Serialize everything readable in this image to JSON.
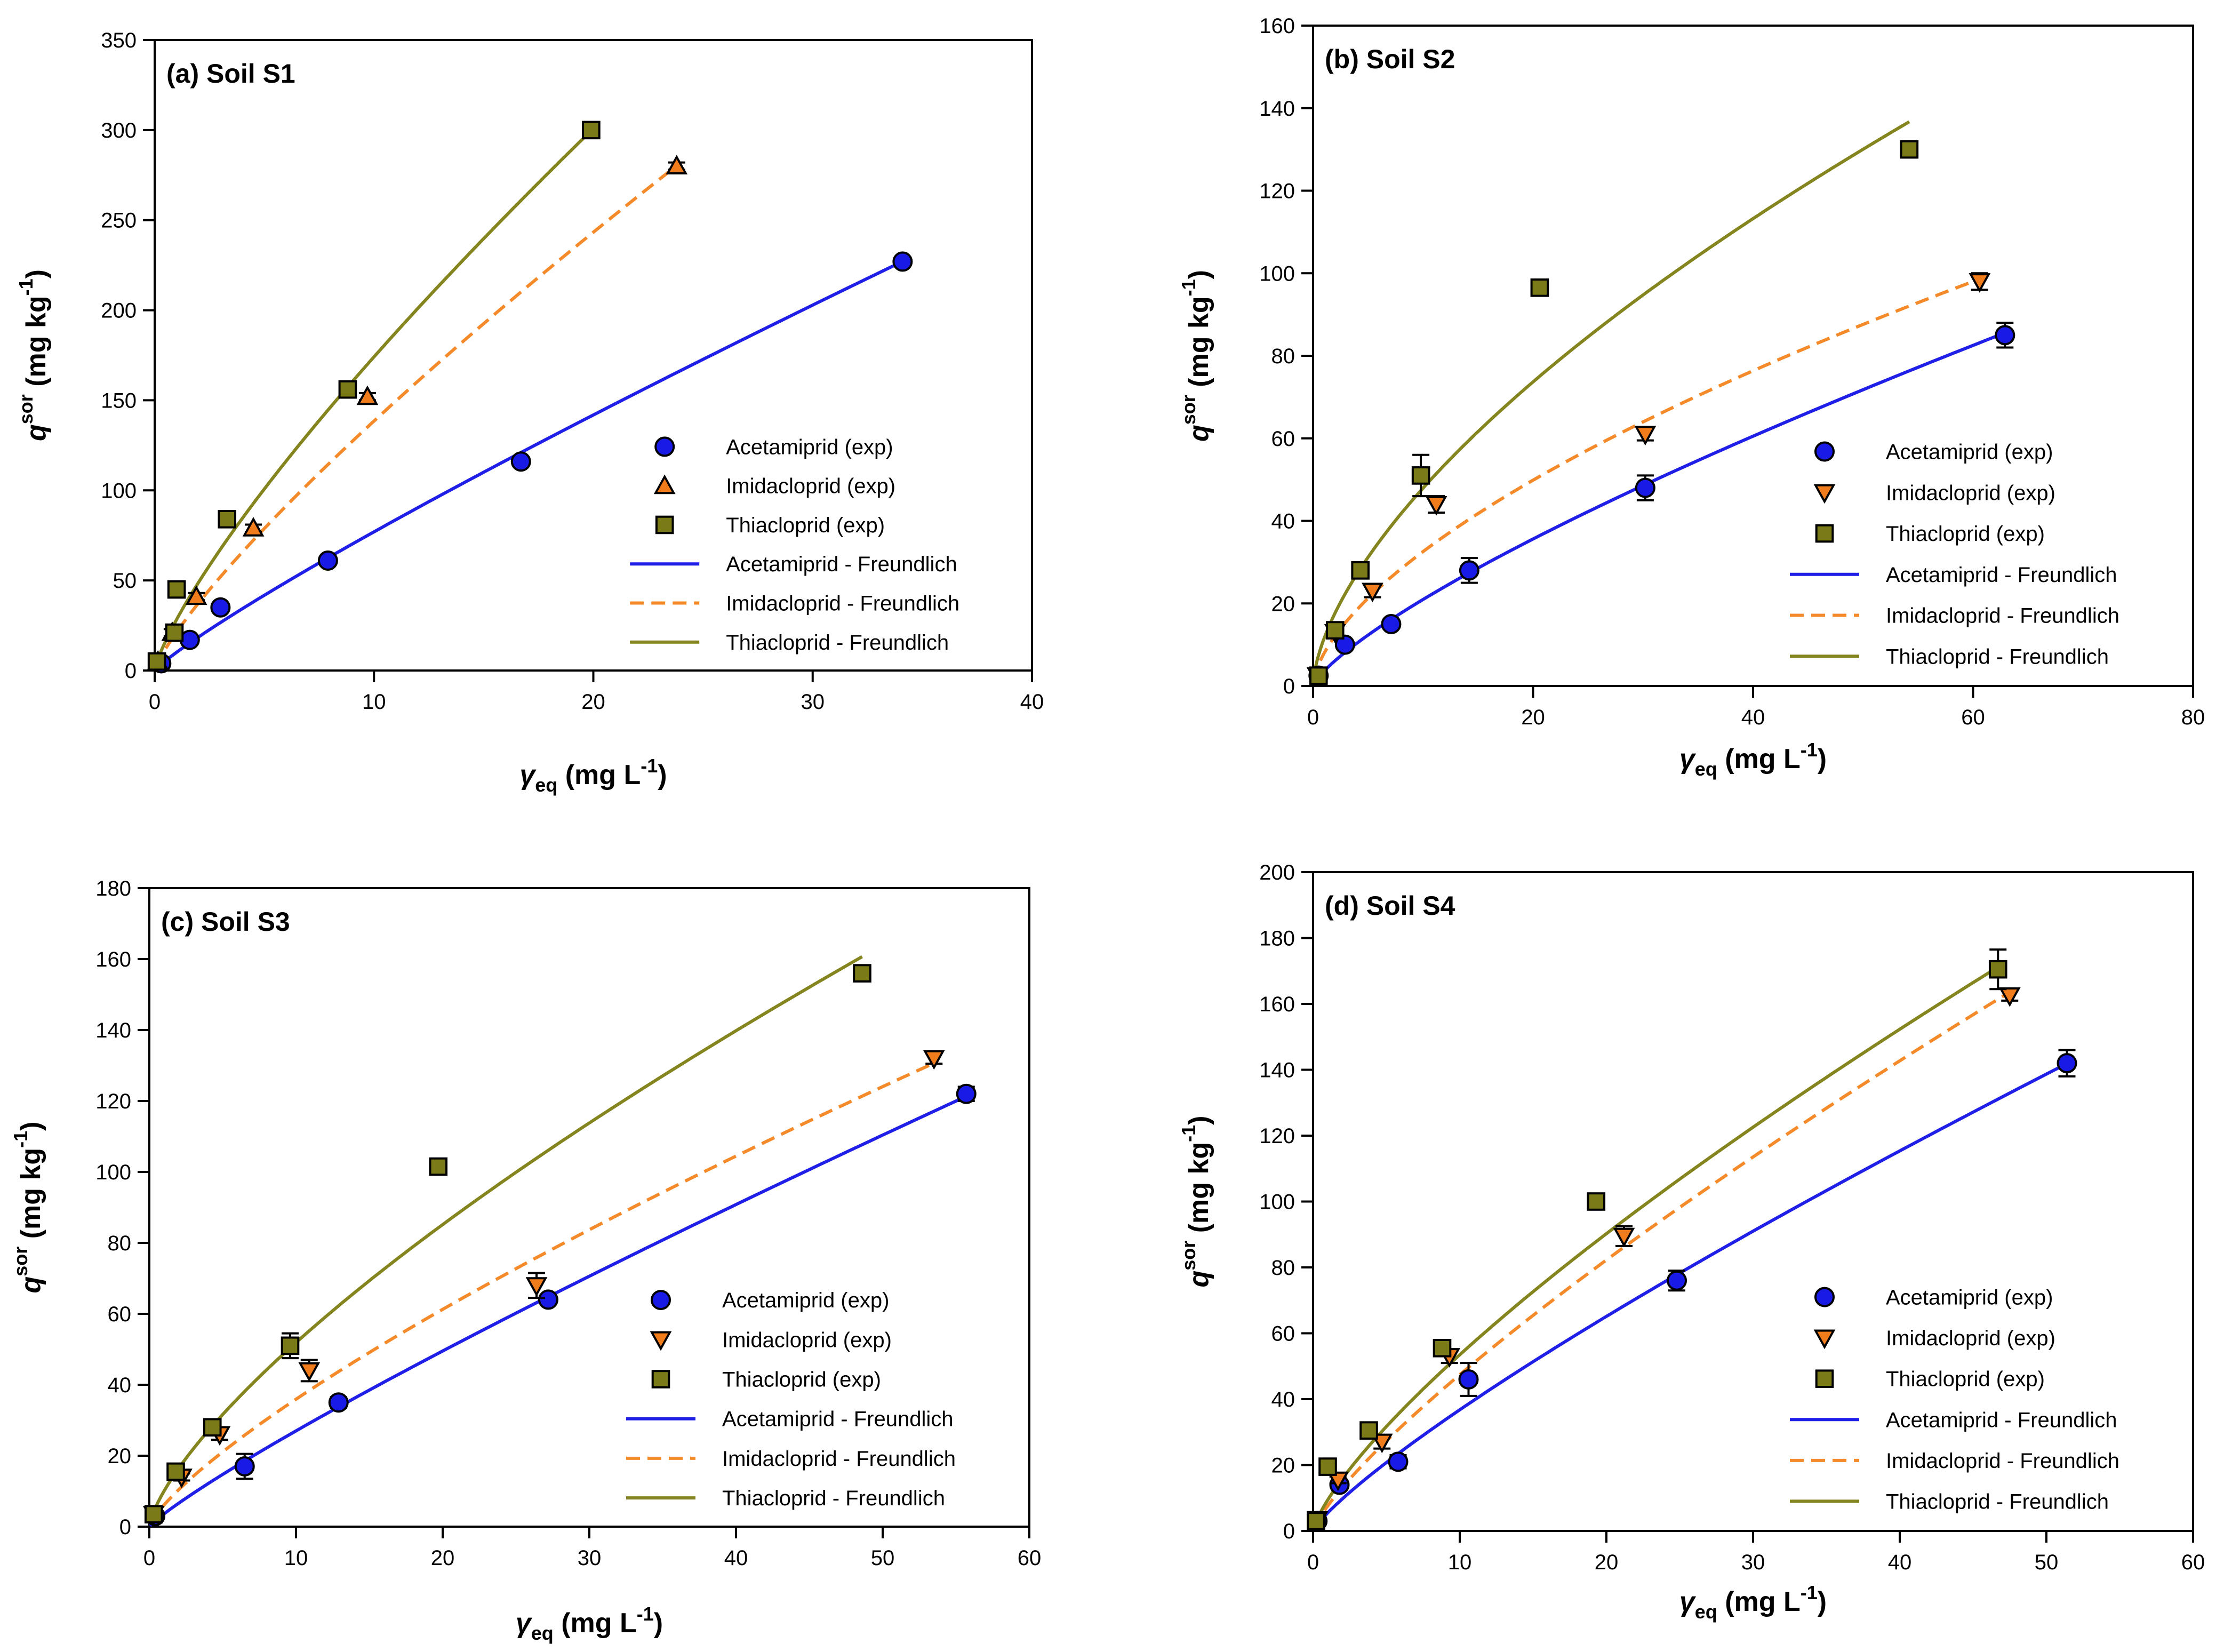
{
  "colors": {
    "acetamiprid": "#1a1ae6",
    "imidacloprid": "#f07c1c",
    "thiacloprid": "#7a7a18",
    "acetamiprid_line": "#1f1fe8",
    "imidacloprid_line": "#f58a2a",
    "thiacloprid_line": "#858520"
  },
  "markers": {
    "acetamiprid": "circle",
    "imidacloprid_a": "triangle-up",
    "imidacloprid": "triangle-down",
    "thiacloprid": "square"
  },
  "axis_labels": {
    "y_main": "q",
    "y_sup": "sor",
    "y_unit": " (mg kg",
    "y_unit_sup": "-1",
    "y_close": ")",
    "x_main": "γ",
    "x_sub": "eq",
    "x_unit": " (mg L",
    "x_unit_sup": "-1",
    "x_close": ")"
  },
  "chart_data": [
    {
      "type": "scatter",
      "title": "(a) Soil S1",
      "xlim": [
        0,
        40
      ],
      "ylim": [
        0,
        350
      ],
      "xticks": [
        0,
        10,
        20,
        30,
        40
      ],
      "yticks": [
        0,
        50,
        100,
        150,
        200,
        250,
        300,
        350
      ],
      "legend": [
        "Acetamiprid (exp)",
        "Imidacloprid (exp)",
        "Thiacloprid (exp)",
        "Acetamiprid - Freundlich",
        "Imidacloprid - Freundlich",
        "Thiacloprid - Freundlich"
      ],
      "series": [
        {
          "name": "Acetamiprid (exp)",
          "marker": "acetamiprid",
          "x": [
            0.3,
            1.6,
            3.0,
            7.9,
            16.7,
            34.1
          ],
          "y": [
            4,
            17,
            35,
            61,
            116,
            227
          ],
          "err": [
            1,
            2,
            2,
            2,
            2,
            2
          ]
        },
        {
          "name": "Imidacloprid (exp)",
          "marker": "imidacloprid_a",
          "x": [
            0.15,
            0.8,
            1.9,
            4.5,
            9.7,
            23.8
          ],
          "y": [
            5,
            21,
            41,
            79,
            152,
            280
          ],
          "err": [
            1,
            2,
            2,
            2,
            2,
            2
          ]
        },
        {
          "name": "Thiacloprid (exp)",
          "marker": "thiacloprid",
          "x": [
            0.1,
            0.9,
            1.0,
            3.3,
            8.8,
            19.9
          ],
          "y": [
            5,
            21,
            45,
            84,
            156,
            300
          ],
          "err": [
            1,
            2,
            2,
            3,
            3,
            3
          ]
        }
      ],
      "fits": [
        {
          "name": "Acetamiprid - Freundlich",
          "kf": 10.1,
          "n": 0.882,
          "xmax": 34.1,
          "color": "acetamiprid_line",
          "dash": false
        },
        {
          "name": "Imidacloprid - Freundlich",
          "kf": 21.3,
          "n": 0.813,
          "xmax": 23.8,
          "color": "imidacloprid_line",
          "dash": true
        },
        {
          "name": "Thiacloprid - Freundlich",
          "kf": 28.3,
          "n": 0.789,
          "xmax": 19.9,
          "color": "thiacloprid_line",
          "dash": false
        }
      ]
    },
    {
      "type": "scatter",
      "title": "(b) Soil S2",
      "xlim": [
        0,
        80
      ],
      "ylim": [
        0,
        160
      ],
      "xticks": [
        0,
        20,
        40,
        60,
        80
      ],
      "yticks": [
        0,
        20,
        40,
        60,
        80,
        100,
        120,
        140,
        160
      ],
      "legend": [
        "Acetamiprid (exp)",
        "Imidacloprid (exp)",
        "Thiacloprid (exp)",
        "Acetamiprid - Freundlich",
        "Imidacloprid - Freundlich",
        "Thiacloprid - Freundlich"
      ],
      "series": [
        {
          "name": "Acetamiprid (exp)",
          "marker": "acetamiprid",
          "x": [
            0.5,
            2.9,
            7.1,
            14.2,
            30.2,
            62.9
          ],
          "y": [
            2.5,
            10,
            15,
            28,
            48,
            85
          ],
          "err": [
            0.8,
            1,
            1,
            3,
            3,
            3
          ]
        },
        {
          "name": "Imidacloprid (exp)",
          "marker": "imidacloprid",
          "x": [
            0.4,
            2.0,
            5.4,
            11.2,
            30.2,
            60.6
          ],
          "y": [
            2.5,
            13,
            23,
            44,
            61,
            98
          ],
          "err": [
            0.8,
            1,
            1.5,
            2,
            1.5,
            2
          ]
        },
        {
          "name": "Thiacloprid (exp)",
          "marker": "thiacloprid",
          "x": [
            0.5,
            2.0,
            4.3,
            9.8,
            20.6,
            54.2
          ],
          "y": [
            2.5,
            13.5,
            28,
            51,
            96.5,
            130
          ],
          "err": [
            0.8,
            1,
            1,
            5,
            1.5,
            1.5
          ]
        }
      ],
      "fits": [
        {
          "name": "Acetamiprid - Freundlich",
          "kf": 3.6,
          "n": 0.765,
          "xmax": 62.9,
          "color": "acetamiprid_line",
          "dash": false
        },
        {
          "name": "Imidacloprid - Freundlich",
          "kf": 7.9,
          "n": 0.615,
          "xmax": 60.6,
          "color": "imidacloprid_line",
          "dash": true
        },
        {
          "name": "Thiacloprid - Freundlich",
          "kf": 11.5,
          "n": 0.62,
          "xmax": 54.2,
          "color": "thiacloprid_line",
          "dash": false
        }
      ]
    },
    {
      "type": "scatter",
      "title": "(c) Soil S3",
      "xlim": [
        0,
        60
      ],
      "ylim": [
        0,
        180
      ],
      "xticks": [
        0,
        10,
        20,
        30,
        40,
        50,
        60
      ],
      "yticks": [
        0,
        20,
        40,
        60,
        80,
        100,
        120,
        140,
        160,
        180
      ],
      "legend": [
        "Acetamiprid (exp)",
        "Imidacloprid (exp)",
        "Thiacloprid (exp)",
        "Acetamiprid - Freundlich",
        "Imidacloprid - Freundlich",
        "Thiacloprid  - Freundlich"
      ],
      "series": [
        {
          "name": "Acetamiprid (exp)",
          "marker": "acetamiprid",
          "x": [
            0.4,
            6.5,
            12.9,
            27.2,
            55.7
          ],
          "y": [
            3,
            17,
            35,
            64,
            122
          ],
          "err": [
            1,
            3.5,
            1.5,
            1,
            2
          ]
        },
        {
          "name": "Imidacloprid (exp)",
          "marker": "imidacloprid",
          "x": [
            0.3,
            2.2,
            4.8,
            10.9,
            26.4,
            53.5
          ],
          "y": [
            3.5,
            14,
            26,
            44,
            68,
            132
          ],
          "err": [
            1,
            1,
            1.5,
            3,
            3.5,
            1.5
          ]
        },
        {
          "name": "Thiacloprid (exp)",
          "marker": "thiacloprid",
          "x": [
            0.3,
            1.8,
            4.3,
            9.6,
            19.7,
            48.6
          ],
          "y": [
            3.5,
            15.5,
            28,
            51,
            101.5,
            156
          ],
          "err": [
            1,
            1,
            1.5,
            3.5,
            2,
            2
          ]
        }
      ],
      "fits": [
        {
          "name": "Acetamiprid - Freundlich",
          "kf": 3.6,
          "n": 0.875,
          "xmax": 55.7,
          "color": "acetamiprid_line",
          "dash": false
        },
        {
          "name": "Imidacloprid - Freundlich",
          "kf": 6.1,
          "n": 0.77,
          "xmax": 53.5,
          "color": "imidacloprid_line",
          "dash": true
        },
        {
          "name": "Thiacloprid  - Freundlich",
          "kf": 10.0,
          "n": 0.715,
          "xmax": 48.6,
          "color": "thiacloprid_line",
          "dash": false
        }
      ]
    },
    {
      "type": "scatter",
      "title": "(d) Soil S4",
      "xlim": [
        0,
        60
      ],
      "ylim": [
        0,
        200
      ],
      "xticks": [
        0,
        10,
        20,
        30,
        40,
        50,
        60
      ],
      "yticks": [
        0,
        20,
        40,
        60,
        80,
        100,
        120,
        140,
        160,
        180,
        200
      ],
      "legend": [
        "Acetamiprid (exp)",
        "Imidacloprid (exp)",
        "Thiacloprid (exp)",
        "Acetamiprid - Freundlich",
        "Imidacloprid - Freundlich",
        "Thiacloprid  - Freundlich"
      ],
      "series": [
        {
          "name": "Acetamiprid (exp)",
          "marker": "acetamiprid",
          "x": [
            0.3,
            1.8,
            5.8,
            10.6,
            24.8,
            51.4
          ],
          "y": [
            3,
            14,
            21,
            46,
            76,
            142
          ],
          "err": [
            1,
            1,
            2,
            5,
            3,
            4
          ]
        },
        {
          "name": "Imidacloprid (exp)",
          "marker": "imidacloprid",
          "x": [
            0.3,
            1.7,
            4.7,
            9.3,
            21.2,
            47.5
          ],
          "y": [
            3.5,
            15.5,
            27,
            53,
            89.5,
            162.5
          ],
          "err": [
            1,
            1,
            2,
            2,
            3,
            1.5
          ]
        },
        {
          "name": "Thiacloprid (exp)",
          "marker": "thiacloprid",
          "x": [
            0.2,
            1.0,
            3.8,
            8.8,
            19.3,
            46.7
          ],
          "y": [
            3,
            19.5,
            30.5,
            55.5,
            100,
            170.5
          ],
          "err": [
            1,
            1,
            1,
            1.5,
            1.5,
            6
          ]
        }
      ],
      "fits": [
        {
          "name": "Acetamiprid - Freundlich",
          "kf": 5.5,
          "n": 0.825,
          "xmax": 51.4,
          "color": "acetamiprid_line",
          "dash": false
        },
        {
          "name": "Imidacloprid - Freundlich",
          "kf": 7.6,
          "n": 0.795,
          "xmax": 47.5,
          "color": "imidacloprid_line",
          "dash": true
        },
        {
          "name": "Thiacloprid  - Freundlich",
          "kf": 9.4,
          "n": 0.755,
          "xmax": 46.7,
          "color": "thiacloprid_line",
          "dash": false
        }
      ]
    }
  ]
}
